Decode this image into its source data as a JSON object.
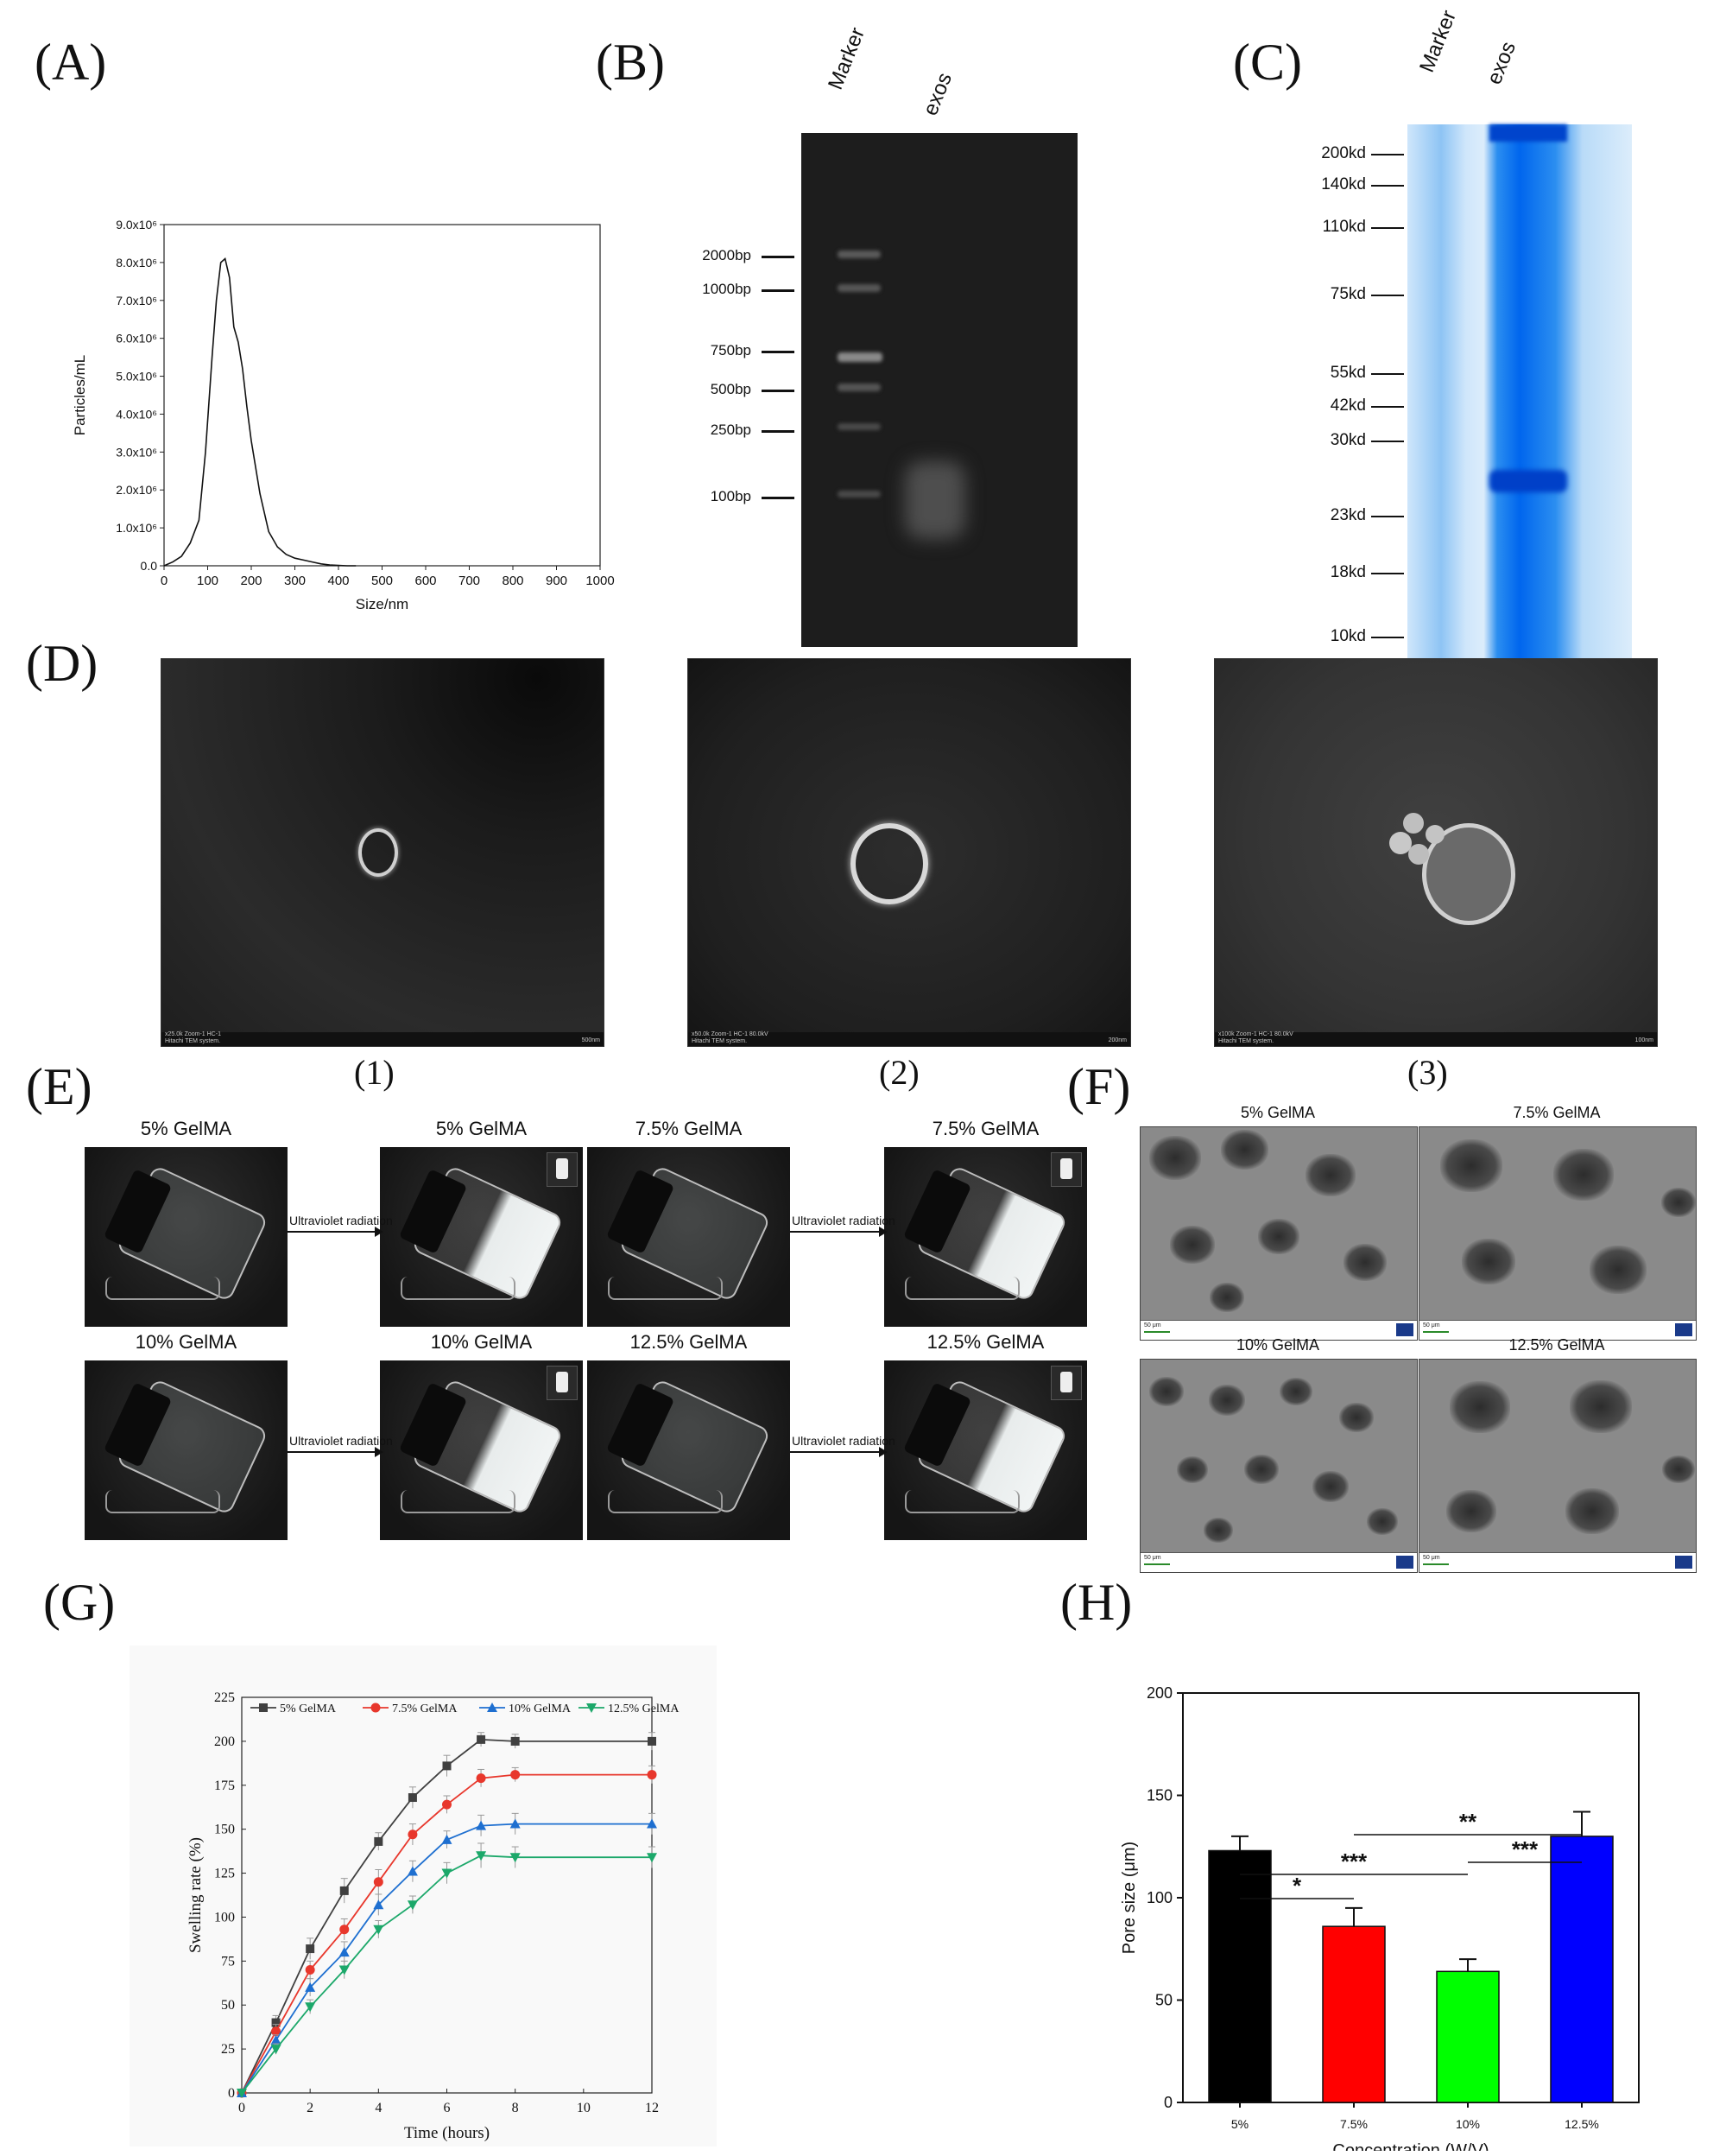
{
  "panels": {
    "A": "(A)",
    "B": "(B)",
    "C": "(C)",
    "D": "(D)",
    "E": "(E)",
    "F": "(F)",
    "G": "(G)",
    "H": "(H)"
  },
  "gel_b": {
    "lanes": [
      "Marker",
      "exos"
    ],
    "bands": [
      "2000bp",
      "1000bp",
      "750bp",
      "500bp",
      "250bp",
      "100bp"
    ]
  },
  "gel_c": {
    "lanes": [
      "Marker",
      "exos"
    ],
    "bands": [
      "200kd",
      "140kd",
      "110kd",
      "75kd",
      "55kd",
      "42kd",
      "30kd",
      "23kd",
      "18kd",
      "10kd"
    ]
  },
  "tem": {
    "captions": [
      "(1)",
      "(2)",
      "(3)"
    ],
    "footers": [
      "x25.0k Zoom-1 HC-1",
      "x50.0k Zoom-1 HC-1 80.0kV",
      "x100k Zoom-1 HC-1 80.0kV"
    ],
    "system": "Hitachi TEM system.",
    "scales": [
      "500nm",
      "200nm",
      "100nm"
    ]
  },
  "panel_e": {
    "labels": [
      "5% GelMA",
      "5% GelMA",
      "7.5% GelMA",
      "7.5% GelMA",
      "10% GelMA",
      "10% GelMA",
      "12.5% GelMA",
      "12.5% GelMA"
    ],
    "arrow": "Ultraviolet radiation"
  },
  "panel_f": {
    "labels": [
      "5% GelMA",
      "7.5% GelMA",
      "10% GelMA",
      "12.5% GelMA"
    ],
    "scale": "50 μm"
  },
  "chart_data": [
    {
      "panel": "A",
      "type": "line",
      "xlabel": "Size/nm",
      "ylabel": "Particles/mL",
      "xlim": [
        0,
        1000
      ],
      "ylim": [
        0,
        9000000.0
      ],
      "xticks": [
        0,
        100,
        200,
        300,
        400,
        500,
        600,
        700,
        800,
        900,
        1000
      ],
      "yticks": [
        "0.0",
        "1.0x10⁶",
        "2.0x10⁶",
        "3.0x10⁶",
        "4.0x10⁶",
        "5.0x10⁶",
        "6.0x10⁶",
        "7.0x10⁶",
        "8.0x10⁶",
        "9.0x10⁶"
      ],
      "x": [
        0,
        20,
        40,
        60,
        80,
        95,
        110,
        120,
        130,
        140,
        150,
        160,
        170,
        180,
        190,
        200,
        220,
        240,
        260,
        280,
        300,
        320,
        340,
        360,
        380,
        400,
        420,
        440
      ],
      "y": [
        0,
        100000,
        250000,
        600000,
        1200000,
        3000000,
        5500000,
        7000000,
        8000000,
        8100000,
        7600000,
        6300000,
        5900000,
        5200000,
        4200000,
        3300000,
        1900000,
        900000,
        500000,
        300000,
        200000,
        150000,
        100000,
        50000,
        20000,
        10000,
        0,
        0
      ]
    },
    {
      "panel": "G",
      "type": "line",
      "xlabel": "Time (hours)",
      "ylabel": "Swelling rate (%)",
      "xlim": [
        0,
        12
      ],
      "ylim": [
        0,
        225
      ],
      "xticks": [
        0,
        2,
        4,
        6,
        8,
        10,
        12
      ],
      "yticks": [
        0,
        25,
        50,
        75,
        100,
        125,
        150,
        175,
        200,
        225
      ],
      "x": [
        0,
        1,
        2,
        3,
        4,
        5,
        6,
        7,
        8,
        12
      ],
      "series": [
        {
          "name": "5% GelMA",
          "color": "#404040",
          "marker": "square",
          "values": [
            0,
            40,
            82,
            115,
            143,
            168,
            186,
            201,
            200,
            200
          ],
          "errors": [
            1,
            4,
            6,
            7,
            5,
            6,
            6,
            4,
            4,
            5
          ]
        },
        {
          "name": "7.5% GelMA",
          "color": "#e8372c",
          "marker": "circle",
          "values": [
            0,
            35,
            70,
            93,
            120,
            147,
            164,
            179,
            181,
            181
          ],
          "errors": [
            1,
            4,
            5,
            6,
            7,
            6,
            5,
            5,
            4,
            5
          ]
        },
        {
          "name": "10% GelMA",
          "color": "#1e6fd0",
          "marker": "triangle-up",
          "values": [
            0,
            30,
            60,
            80,
            107,
            126,
            144,
            152,
            153,
            153
          ],
          "errors": [
            1,
            3,
            5,
            6,
            6,
            6,
            5,
            6,
            6,
            6
          ]
        },
        {
          "name": "12.5% GelMA",
          "color": "#1ca86a",
          "marker": "triangle-down",
          "values": [
            0,
            25,
            49,
            70,
            93,
            107,
            125,
            135,
            134,
            134
          ],
          "errors": [
            1,
            3,
            4,
            5,
            5,
            5,
            6,
            7,
            6,
            6
          ]
        }
      ]
    },
    {
      "panel": "H",
      "type": "bar",
      "xlabel": "Concentration (W/V)",
      "ylabel": "Pore size (μm)",
      "ylim": [
        0,
        200
      ],
      "yticks": [
        0,
        50,
        100,
        150,
        200
      ],
      "categories": [
        "5%",
        "7.5%",
        "10%",
        "12.5%"
      ],
      "values": [
        123,
        86,
        64,
        130
      ],
      "errors": [
        7,
        9,
        6,
        12
      ],
      "colors": [
        "#000000",
        "#ff0000",
        "#00ff00",
        "#0000ff"
      ],
      "significance": [
        {
          "from": 0,
          "to": 1,
          "label": "*"
        },
        {
          "from": 0,
          "to": 2,
          "label": "***"
        },
        {
          "from": 2,
          "to": 3,
          "label": "***"
        },
        {
          "from": 1,
          "to": 3,
          "label": "**"
        }
      ]
    }
  ]
}
